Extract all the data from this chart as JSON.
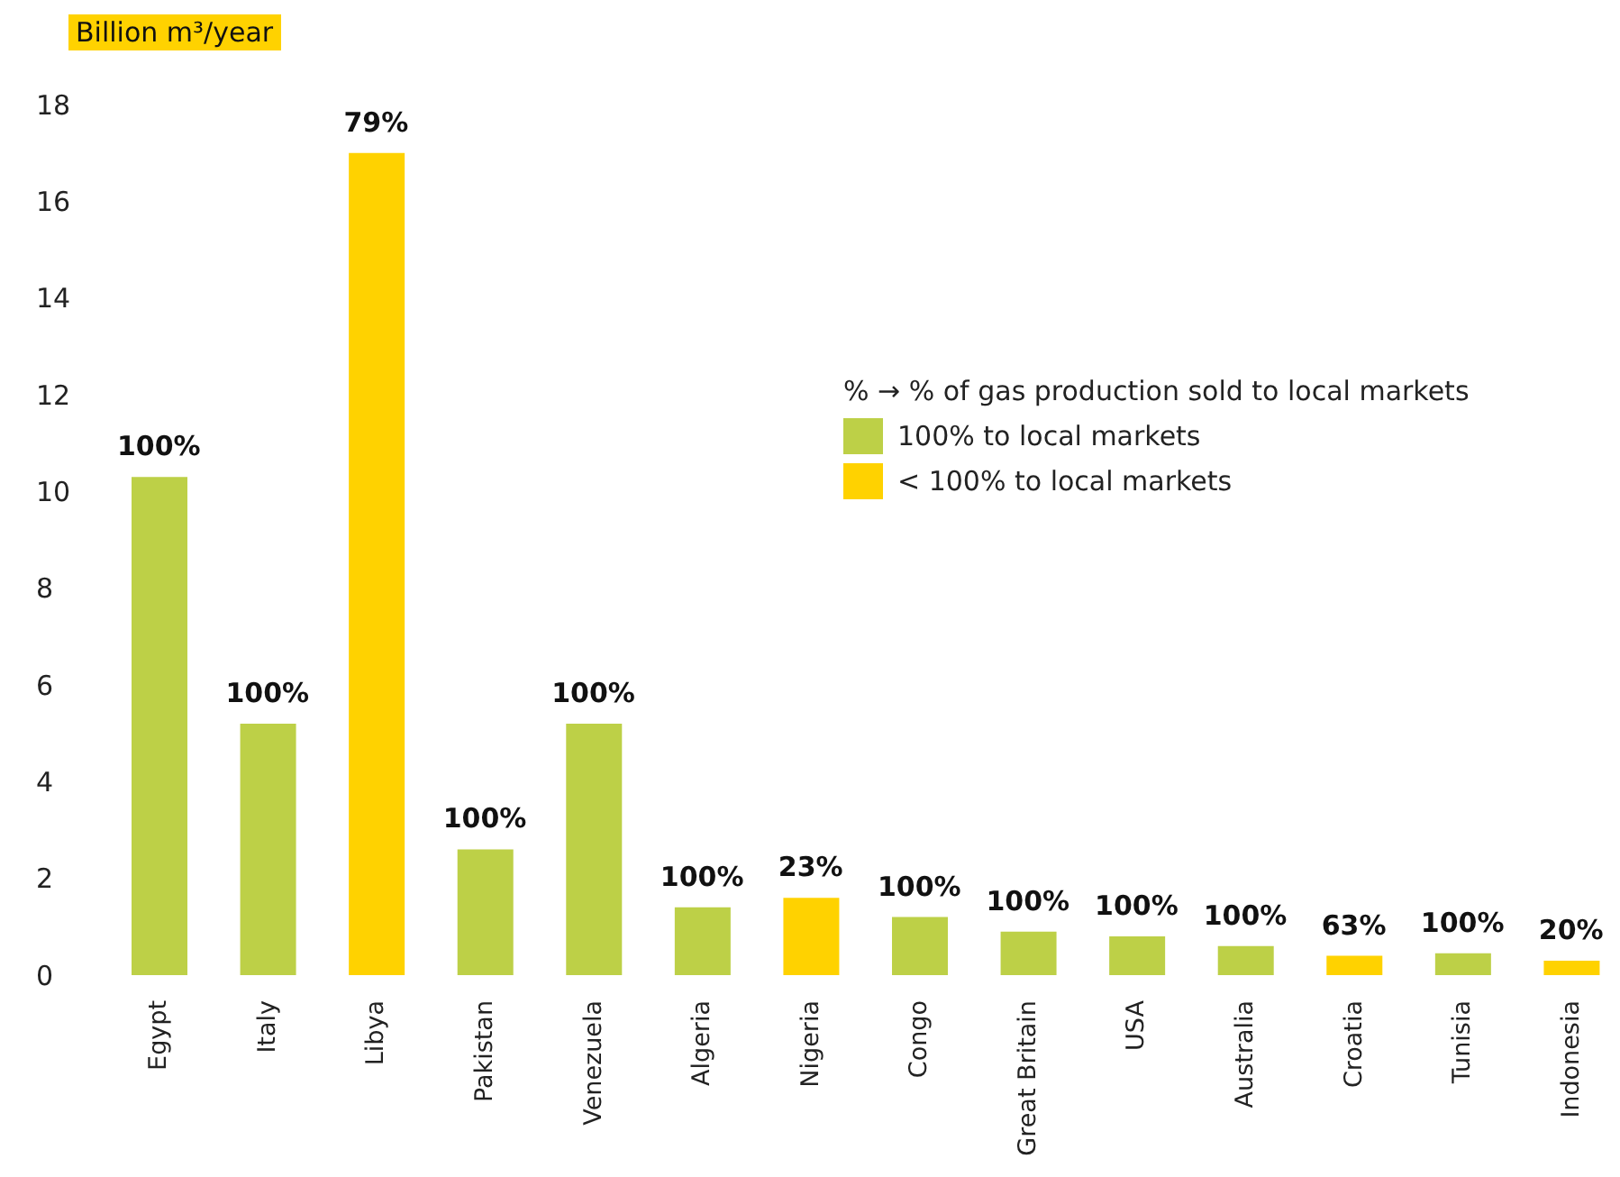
{
  "chart_data": {
    "type": "bar",
    "ylabel": "Billion m³/year",
    "legend_title": "% → % of gas production sold to local markets",
    "legend": "top right",
    "stacked": true,
    "categories": [
      "Egypt",
      "Italy",
      "Libya",
      "Pakistan",
      "Venezuela",
      "Algeria",
      "Nigeria",
      "Congo",
      "Great Britain",
      "USA",
      "Australia",
      "Croatia",
      "Tunisia",
      "Indonesia"
    ],
    "series": [
      {
        "name": "100% to local markets",
        "color": "#bdd047",
        "values": [
          10.3,
          5.2,
          null,
          2.6,
          5.2,
          1.4,
          null,
          1.2,
          0.9,
          0.8,
          0.6,
          null,
          0.45,
          null
        ]
      },
      {
        "name": "< 100% to local markets",
        "color": "#ffd200",
        "values": [
          null,
          null,
          17.0,
          null,
          null,
          null,
          1.6,
          null,
          null,
          null,
          null,
          0.4,
          null,
          0.3
        ]
      }
    ],
    "annotations": [
      {
        "text": "100%",
        "x": "Egypt",
        "y": 10.3
      },
      {
        "text": "100%",
        "x": "Italy",
        "y": 5.2
      },
      {
        "text": "79%",
        "x": "Libya",
        "y": 17.0
      },
      {
        "text": "100%",
        "x": "Pakistan",
        "y": 2.6
      },
      {
        "text": "100%",
        "x": "Venezuela",
        "y": 5.2
      },
      {
        "text": "100%",
        "x": "Algeria",
        "y": 1.4
      },
      {
        "text": "23%",
        "x": "Nigeria",
        "y": 1.6
      },
      {
        "text": "100%",
        "x": "Congo",
        "y": 1.2
      },
      {
        "text": "100%",
        "x": "Great Britain",
        "y": 0.9
      },
      {
        "text": "100%",
        "x": "USA",
        "y": 0.8
      },
      {
        "text": "100%",
        "x": "Australia",
        "y": 0.6
      },
      {
        "text": "63%",
        "x": "Croatia",
        "y": 0.4
      },
      {
        "text": "100%",
        "x": "Tunisia",
        "y": 0.45
      },
      {
        "text": "20%",
        "x": "Indonesia",
        "y": 0.3
      }
    ],
    "ylim": [
      0,
      18
    ],
    "yticks": [
      0,
      2,
      4,
      6,
      8,
      10,
      12,
      14,
      16,
      18
    ],
    "grid": false
  }
}
